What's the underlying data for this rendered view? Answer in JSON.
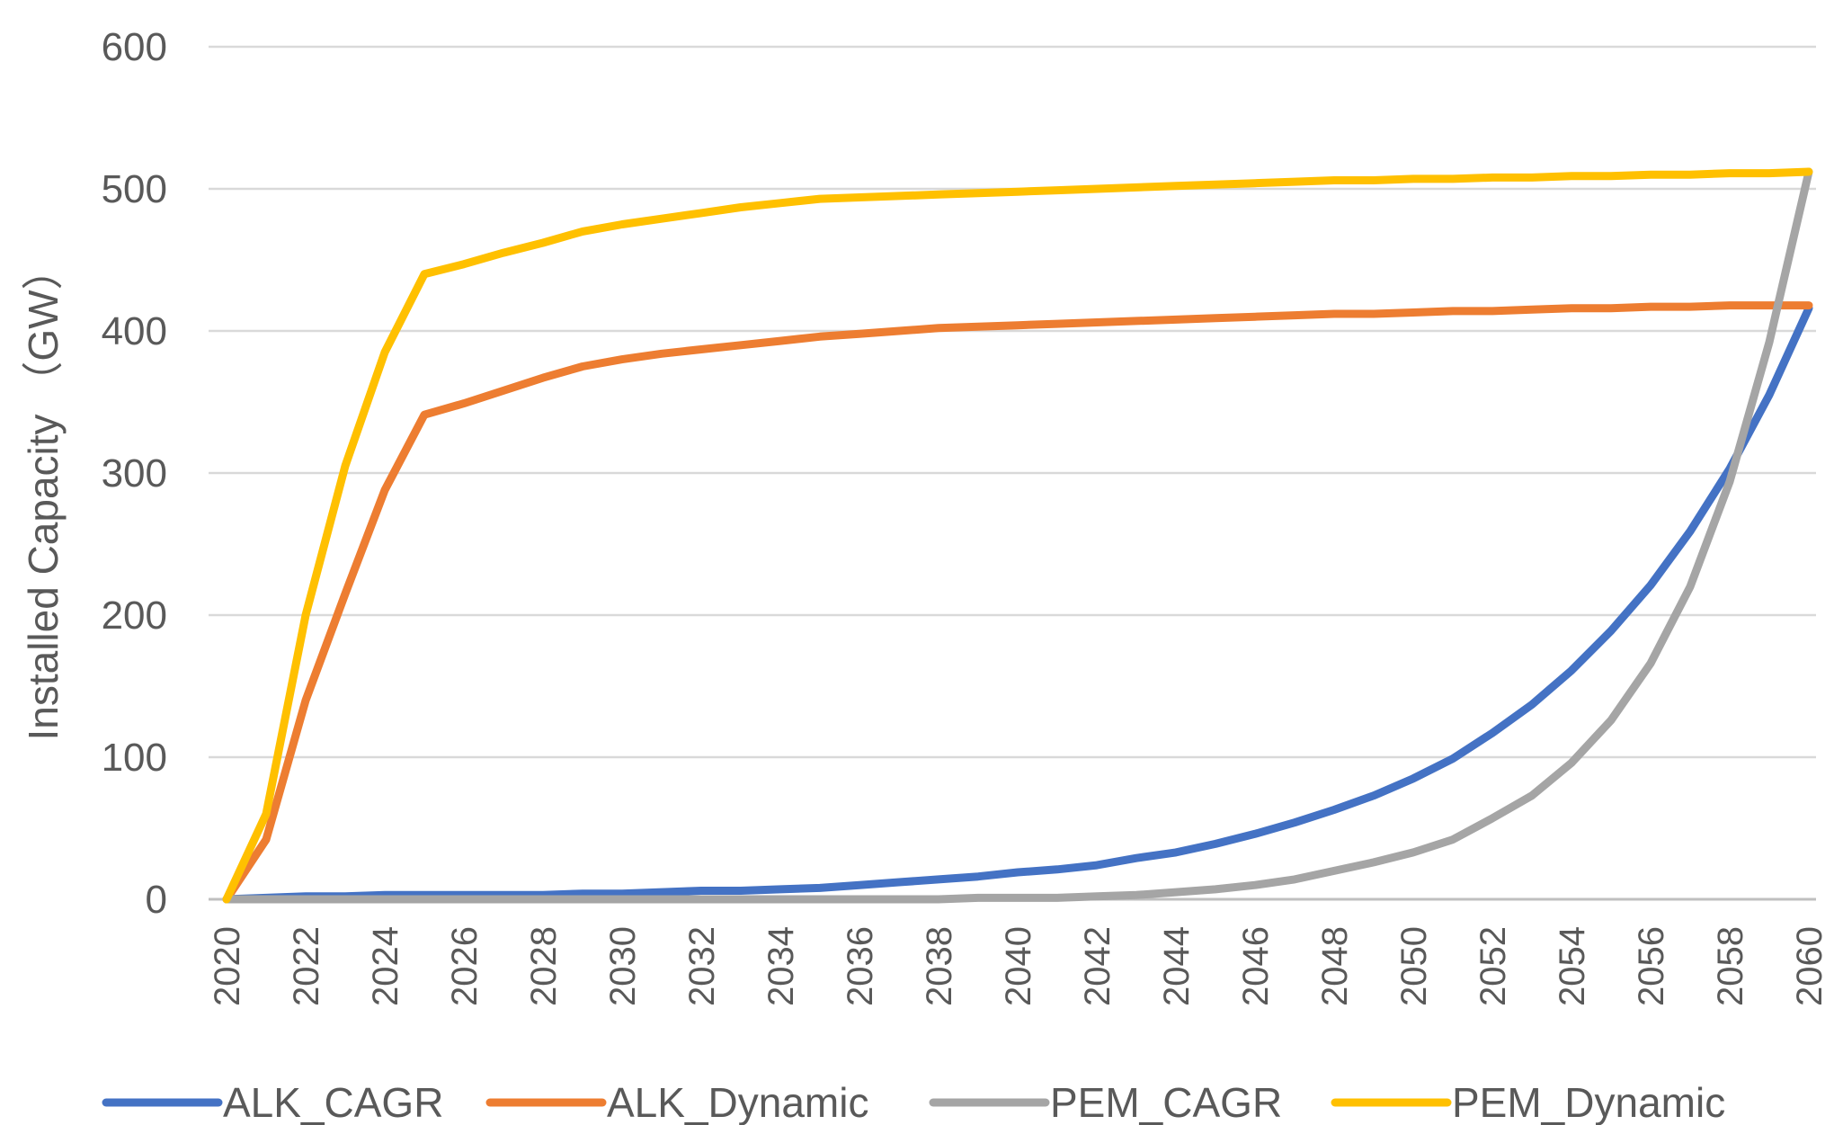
{
  "chart_data": {
    "type": "line",
    "title": "",
    "xlabel": "",
    "ylabel": "Installed Capacity （GW）",
    "ylim": [
      0,
      600
    ],
    "yticks": [
      0,
      100,
      200,
      300,
      400,
      500,
      600
    ],
    "xlim": [
      2020,
      2060
    ],
    "xticks": [
      "2020",
      "2022",
      "2024",
      "2026",
      "2028",
      "2030",
      "2032",
      "2034",
      "2036",
      "2038",
      "2040",
      "2042",
      "2044",
      "2046",
      "2048",
      "2050",
      "2052",
      "2054",
      "2056",
      "2058",
      "2060"
    ],
    "grid": true,
    "legend_position": "bottom",
    "x": [
      2020,
      2021,
      2022,
      2023,
      2024,
      2025,
      2026,
      2027,
      2028,
      2029,
      2030,
      2031,
      2032,
      2033,
      2034,
      2035,
      2036,
      2037,
      2038,
      2039,
      2040,
      2041,
      2042,
      2043,
      2044,
      2045,
      2046,
      2047,
      2048,
      2049,
      2050,
      2051,
      2052,
      2053,
      2054,
      2055,
      2056,
      2057,
      2058,
      2059,
      2060
    ],
    "series": [
      {
        "name": "ALK_CAGR",
        "color": "#4472C4",
        "values": [
          0,
          1,
          2,
          2,
          3,
          3,
          3,
          3,
          3,
          4,
          4,
          5,
          6,
          6,
          7,
          8,
          10,
          12,
          14,
          16,
          19,
          21,
          24,
          29,
          33,
          39,
          46,
          54,
          63,
          73,
          85,
          99,
          117,
          137,
          161,
          189,
          221,
          259,
          303,
          355,
          416
        ]
      },
      {
        "name": "ALK_Dynamic",
        "color": "#ED7D31",
        "values": [
          0,
          42,
          140,
          215,
          288,
          341,
          349,
          358,
          367,
          375,
          380,
          384,
          387,
          390,
          393,
          396,
          398,
          400,
          402,
          403,
          404,
          405,
          406,
          407,
          408,
          409,
          410,
          411,
          412,
          412,
          413,
          414,
          414,
          415,
          416,
          416,
          417,
          417,
          418,
          418,
          418
        ]
      },
      {
        "name": "PEM_CAGR",
        "color": "#A5A5A5",
        "values": [
          0,
          0,
          0,
          0,
          0,
          0,
          0,
          0,
          0,
          0,
          0,
          0,
          0,
          0,
          0,
          0,
          0,
          0,
          0,
          1,
          1,
          1,
          2,
          3,
          5,
          7,
          10,
          14,
          20,
          26,
          33,
          42,
          57,
          73,
          96,
          126,
          166,
          220,
          294,
          392,
          512
        ]
      },
      {
        "name": "PEM_Dynamic",
        "color": "#FFC000",
        "values": [
          0,
          60,
          200,
          305,
          385,
          440,
          447,
          455,
          462,
          470,
          475,
          479,
          483,
          487,
          490,
          493,
          494,
          495,
          496,
          497,
          498,
          499,
          500,
          501,
          502,
          503,
          504,
          505,
          506,
          506,
          507,
          507,
          508,
          508,
          509,
          509,
          510,
          510,
          511,
          511,
          512
        ]
      }
    ]
  }
}
